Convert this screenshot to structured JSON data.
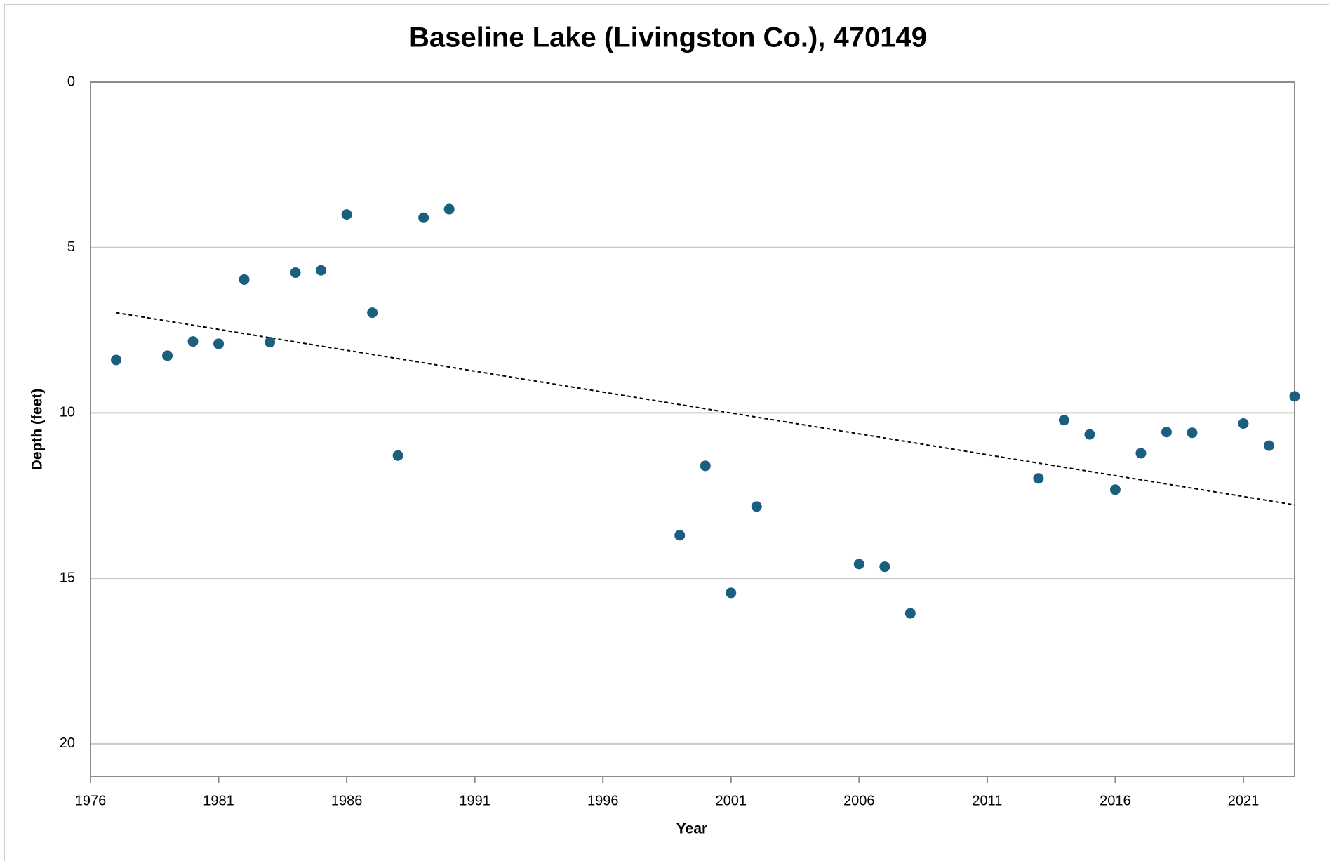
{
  "chart_data": {
    "type": "scatter",
    "title": "Baseline Lake (Livingston Co.), 470149",
    "x_label": "Year",
    "y_label": "Depth (feet)",
    "x": [
      1977,
      1979,
      1980,
      1981,
      1982,
      1983,
      1984,
      1985,
      1986,
      1987,
      1988,
      1989,
      1990,
      1999,
      2000,
      2001,
      2002,
      2006,
      2007,
      2008,
      2013,
      2014,
      2015,
      2016,
      2017,
      2018,
      2019,
      2021,
      2022,
      2023
    ],
    "values": [
      8.4,
      8.27,
      7.84,
      7.91,
      5.97,
      7.86,
      5.76,
      5.69,
      4.0,
      6.97,
      11.29,
      4.1,
      3.84,
      13.7,
      11.6,
      15.44,
      12.83,
      14.57,
      14.65,
      16.06,
      11.98,
      10.22,
      10.65,
      12.32,
      11.22,
      10.58,
      10.6,
      10.32,
      10.99,
      9.5
    ],
    "color": "#1a5f7f",
    "trendline": {
      "x": [
        1977,
        2023
      ],
      "values": [
        6.97,
        12.78
      ],
      "color": "#000000"
    },
    "xlim": [
      1976,
      2023
    ],
    "xticks": [
      1976,
      1981,
      1986,
      1991,
      1996,
      2001,
      2006,
      2011,
      2016,
      2021
    ],
    "ylim": [
      0,
      21
    ],
    "yticks": [
      0,
      5,
      10,
      15,
      20
    ],
    "y_reversed": true,
    "grid": true
  }
}
